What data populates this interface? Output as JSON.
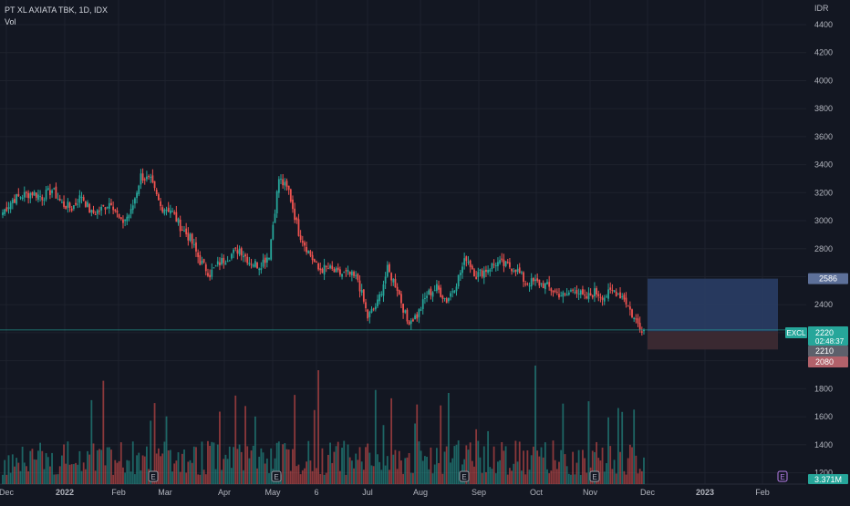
{
  "header": {
    "title": "PT XL AXIATA TBK, 1D, IDX",
    "volume_label": "Vol",
    "currency": "IDR"
  },
  "badges": {
    "symbol": "EXCL",
    "last_price": "2220",
    "countdown": "02:48:37",
    "position_top": "2586",
    "position_entry": "2210",
    "position_stop": "2080",
    "volume_last": "3.371M",
    "earnings_marker": "E"
  },
  "colors": {
    "background": "#131722",
    "grid": "#1e222d",
    "up": "#26a69a",
    "down": "#ef5350",
    "text": "#b2b5be",
    "target_zone": "#2b3f68",
    "stop_zone": "#3c2a33",
    "earnings": "#b57ee8",
    "volume_badge": "#26a69a",
    "neutral_badge": "#5d606b",
    "target_badge": "#5d7099"
  },
  "chart_data": {
    "type": "candlestick",
    "title": "PT XL AXIATA TBK, 1D, IDX",
    "series": [
      {
        "name": "EXCL",
        "kind": "price_daily"
      },
      {
        "name": "Vol",
        "kind": "volume"
      }
    ],
    "y_ticks": [
      4400,
      4200,
      4000,
      3800,
      3600,
      3400,
      3200,
      3000,
      2800,
      2600,
      2400,
      2200,
      2000,
      1800,
      1600,
      1400,
      1200
    ],
    "ylim": [
      1200,
      4500
    ],
    "x_ticks": [
      "Dec",
      "2022",
      "Feb",
      "Mar",
      "Apr",
      "May",
      "6",
      "Jul",
      "Aug",
      "Sep",
      "Oct",
      "Nov",
      "Dec",
      "2023",
      "Feb"
    ],
    "price_path_weekly_close": [
      3060,
      3150,
      3180,
      3200,
      3170,
      3220,
      3120,
      3090,
      3180,
      3050,
      3080,
      3140,
      2980,
      3060,
      3320,
      3280,
      3100,
      3080,
      2960,
      2870,
      2710,
      2620,
      2700,
      2750,
      2800,
      2710,
      2680,
      2760,
      3300,
      3210,
      2920,
      2780,
      2650,
      2660,
      2620,
      2620,
      2580,
      2310,
      2410,
      2650,
      2520,
      2280,
      2320,
      2470,
      2520,
      2430,
      2560,
      2740,
      2610,
      2650,
      2700,
      2680,
      2660,
      2560,
      2560,
      2540,
      2490,
      2460,
      2520,
      2440,
      2490,
      2460,
      2500,
      2450,
      2300,
      2220
    ],
    "last_close": 2220,
    "position": {
      "target": 2586,
      "entry": 2210,
      "stop": 2080
    },
    "volume_unit": "M",
    "volume_last": 3.371,
    "earnings_events": [
      "Feb",
      "May",
      "Aug",
      "Nov",
      "Feb"
    ],
    "grid": true,
    "legend": "top-left"
  }
}
